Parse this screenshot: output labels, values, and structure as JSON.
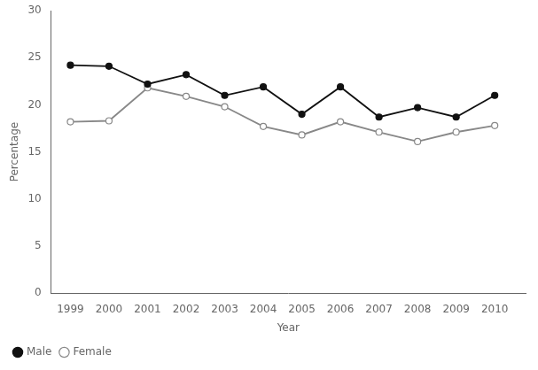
{
  "chart_data": {
    "type": "line",
    "xlabel": "Year",
    "ylabel": "Percentage",
    "x": [
      1999,
      2000,
      2001,
      2002,
      2003,
      2004,
      2005,
      2006,
      2007,
      2008,
      2009,
      2010
    ],
    "series": [
      {
        "name": "Male",
        "color": "#111111",
        "marker": "circle",
        "values": [
          24.2,
          24.1,
          22.2,
          23.2,
          21.0,
          21.9,
          19.0,
          21.9,
          18.7,
          19.7,
          18.7,
          21.0
        ]
      },
      {
        "name": "Female",
        "color": "#888888",
        "marker": "open_circle",
        "values": [
          18.2,
          18.3,
          21.8,
          20.9,
          19.8,
          17.7,
          16.8,
          18.2,
          17.1,
          16.1,
          17.1,
          17.8
        ]
      }
    ],
    "xlim": [
      1998.5,
      2010.8
    ],
    "xticks": [
      1999,
      2000,
      2001,
      2002,
      2003,
      2004,
      2005,
      2006,
      2007,
      2008,
      2009,
      2010
    ],
    "ylim": [
      0,
      30
    ],
    "yticks": [
      0,
      5,
      10,
      15,
      20,
      25,
      30
    ],
    "grid": false,
    "legend": "lower left"
  }
}
